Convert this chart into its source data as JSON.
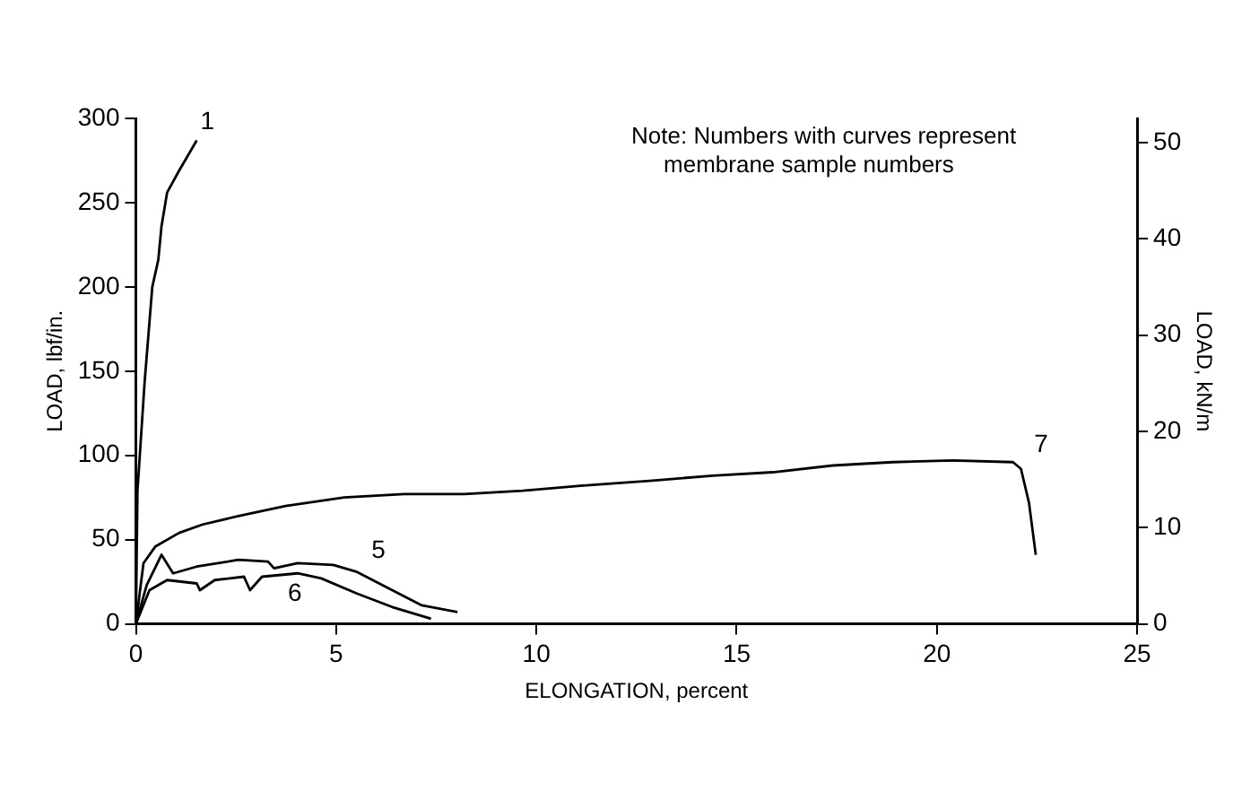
{
  "chart_data": {
    "type": "line",
    "xlabel": "ELONGATION, percent",
    "ylabel": "LOAD, lbf/in.",
    "y2label": "LOAD, kN/m",
    "xlim": [
      0,
      25
    ],
    "xticks": [
      0,
      5,
      10,
      15,
      20,
      25
    ],
    "ylim": [
      0,
      300
    ],
    "yticks": [
      0,
      50,
      100,
      150,
      200,
      250,
      300
    ],
    "y2lim": [
      0,
      52.5
    ],
    "y2ticks": [
      0,
      10,
      20,
      30,
      40,
      50
    ],
    "grid": false,
    "legend": false,
    "marker": "none",
    "line_style": "solid",
    "series": [
      {
        "name": "1",
        "color": "#000000",
        "x": [
          0,
          0.04,
          0.22,
          0.41,
          0.56,
          0.64,
          0.78,
          1.08,
          1.52
        ],
        "values": [
          0,
          79,
          144,
          200,
          216,
          236,
          256,
          269,
          287
        ]
      },
      {
        "name": "5",
        "color": "#000000",
        "x": [
          0,
          0.27,
          0.64,
          0.93,
          1.52,
          2.56,
          3.3,
          3.45,
          4.04,
          4.93,
          5.5,
          6.4,
          7.14,
          8.03
        ],
        "values": [
          0,
          23,
          41,
          30,
          34,
          38,
          37,
          33,
          36,
          35,
          31,
          20,
          11,
          7
        ]
      },
      {
        "name": "6",
        "color": "#000000",
        "x": [
          0,
          0.34,
          0.78,
          1.52,
          1.6,
          1.97,
          2.7,
          2.85,
          3.15,
          4.04,
          4.63,
          5.52,
          6.4,
          7.37
        ],
        "values": [
          0,
          20,
          26,
          24,
          20,
          26,
          28,
          20,
          28,
          30,
          27,
          18,
          10,
          3
        ]
      },
      {
        "name": "7",
        "color": "#000000",
        "x": [
          0,
          0.19,
          0.49,
          1.08,
          1.67,
          2.56,
          3.74,
          5.2,
          6.7,
          8.2,
          9.66,
          11.1,
          12.9,
          14.4,
          15.9,
          17.4,
          18.9,
          20.4,
          21.9,
          22.1,
          22.3,
          22.47
        ],
        "values": [
          0,
          36,
          46,
          54,
          59,
          64,
          70,
          75,
          77,
          77,
          79,
          82,
          85,
          88,
          90,
          94,
          96,
          97,
          96,
          92,
          72,
          41
        ]
      }
    ],
    "annotations": [
      "Note: Numbers with curves represent membrane sample numbers"
    ]
  }
}
